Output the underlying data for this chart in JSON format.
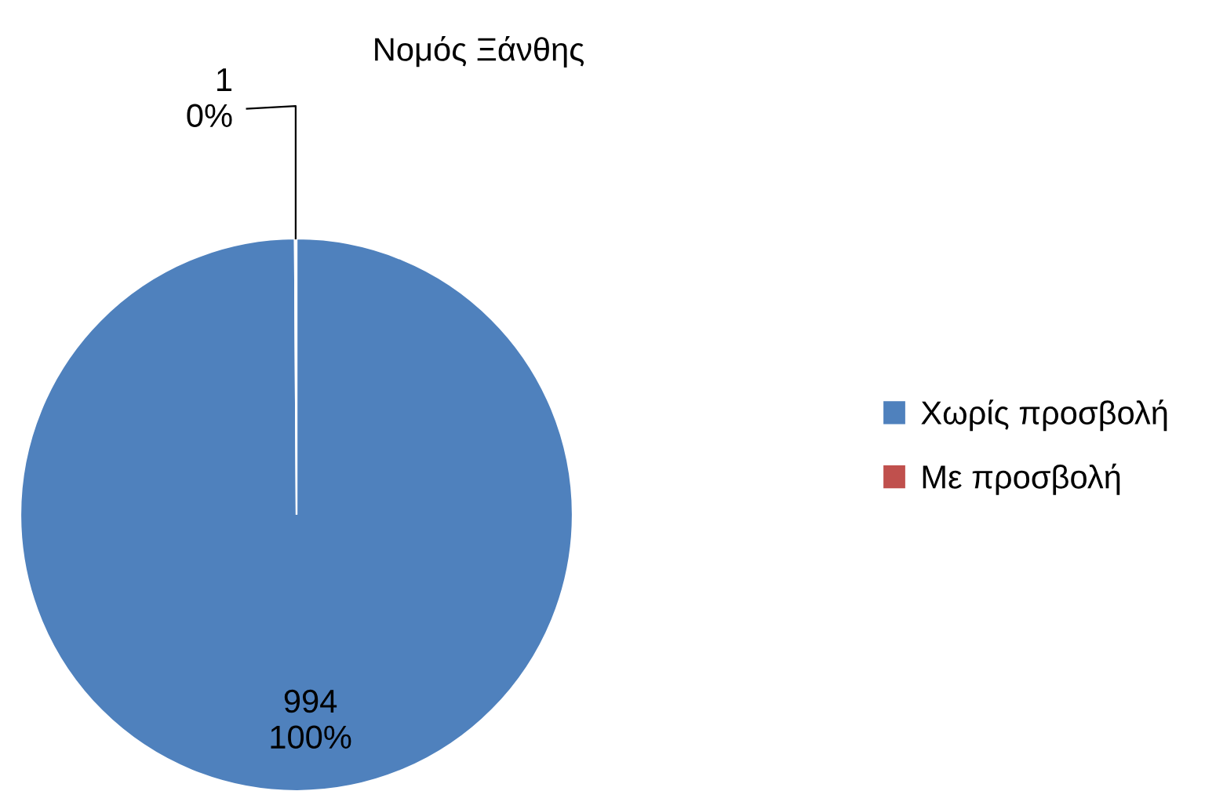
{
  "chart_data": {
    "type": "pie",
    "title": "Νομός Ξάνθης",
    "categories": [
      "Χωρίς προσβολή",
      "Με προσβολή"
    ],
    "values": [
      994,
      1
    ],
    "colors": [
      "#4f81bd",
      "#c0504d"
    ],
    "data_labels": true,
    "annotations": [
      "100%",
      "0%"
    ],
    "legend": "right"
  }
}
